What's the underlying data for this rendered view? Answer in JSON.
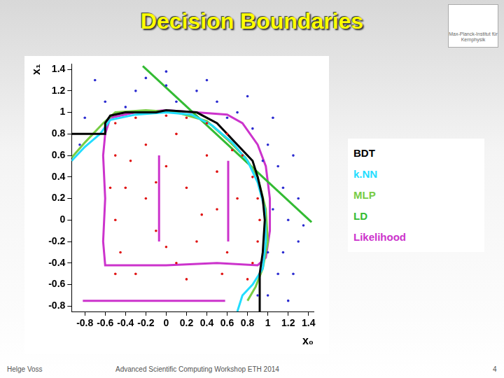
{
  "slide": {
    "title": "Decision Boundaries",
    "logo": "Max-Planck-Institut für Kernphysik",
    "footer_left": "Helge Voss",
    "footer_center": "Advanced Scientific Computing Workshop ETH 2014",
    "page": "4"
  },
  "chart_data": {
    "type": "scatter",
    "xlabel": "x₀",
    "ylabel": "x₁",
    "xlim": [
      -0.93,
      1.45
    ],
    "ylim": [
      -0.85,
      1.45
    ],
    "xticks": [
      -0.8,
      -0.6,
      -0.4,
      -0.2,
      0,
      0.2,
      0.4,
      0.6,
      0.8,
      1,
      1.2,
      1.4
    ],
    "yticks": [
      -0.8,
      -0.6,
      -0.4,
      -0.2,
      0,
      0.2,
      0.4,
      0.6,
      0.8,
      1,
      1.2,
      1.4
    ],
    "grid": false,
    "series": [
      {
        "color": "#2a2ad0",
        "type": "scatter",
        "marker": "dot",
        "x": [
          -0.8,
          -0.6,
          -0.3,
          0,
          0.3,
          0.5,
          0.7,
          0.85,
          1.0,
          1.1,
          1.15,
          1.2,
          1.15,
          1.1,
          1.0,
          -0.7,
          0,
          0.4,
          0.8,
          1.05,
          1.25,
          1.3,
          1.3,
          1.25,
          1.2,
          -0.4,
          0.1,
          0.6,
          0.95,
          1.05,
          1.0,
          -0.85,
          0.9,
          1.35,
          -0.2
        ],
        "y": [
          0.95,
          1.1,
          1.2,
          1.25,
          1.2,
          1.1,
          1.0,
          0.85,
          0.7,
          0.5,
          0.3,
          0,
          -0.3,
          -0.5,
          -0.7,
          1.3,
          1.38,
          1.3,
          1.15,
          0.95,
          0.6,
          0.2,
          -0.2,
          -0.5,
          -0.75,
          1.05,
          1.1,
          0.95,
          0.55,
          0.1,
          -0.3,
          0.7,
          -0.7,
          -0.05,
          1.32
        ]
      },
      {
        "color": "#e01010",
        "type": "scatter",
        "marker": "dot",
        "x": [
          -0.5,
          -0.3,
          0,
          0.2,
          0.4,
          0.6,
          0.75,
          0.85,
          0.9,
          0.92,
          0.9,
          0.85,
          0.8,
          -0.5,
          -0.4,
          -0.5,
          -0.45,
          -0.5,
          -0.2,
          0,
          0.2,
          0.4,
          0.5,
          0.3,
          0.1,
          -0.1,
          -0.2,
          0.6,
          0.7,
          0.5,
          -0.3,
          0.2,
          0.55,
          0.1,
          -0.1,
          0.35,
          -0.35,
          0.65,
          0,
          -0.55
        ],
        "y": [
          0.9,
          0.95,
          0.97,
          0.95,
          0.9,
          0.8,
          0.6,
          0.4,
          0.2,
          0,
          -0.2,
          -0.4,
          -0.55,
          0.6,
          0.3,
          0,
          -0.3,
          -0.5,
          0.7,
          0.5,
          0.3,
          0.6,
          0.1,
          -0.2,
          -0.4,
          -0.1,
          0.2,
          -0.3,
          0.2,
          0.45,
          -0.5,
          -0.55,
          -0.5,
          0.8,
          0.35,
          0.05,
          0.55,
          0.65,
          -0.25,
          0.3
        ]
      },
      {
        "name": "BDT",
        "color": "#000000",
        "type": "line",
        "x": [
          -0.93,
          -0.6,
          -0.6,
          -0.55,
          -0.4,
          -0.1,
          0,
          0.3,
          0.5,
          0.7,
          0.85,
          0.9,
          0.95,
          0.97,
          0.95,
          0.92,
          0.92
        ],
        "y": [
          0.8,
          0.8,
          0.9,
          0.97,
          1.0,
          1.0,
          1.02,
          1.0,
          0.9,
          0.7,
          0.55,
          0.4,
          0.2,
          0,
          -0.3,
          -0.5,
          -0.85
        ]
      },
      {
        "name": "k.NN",
        "color": "#22ddff",
        "type": "line",
        "x": [
          -0.93,
          -0.8,
          -0.65,
          -0.55,
          -0.3,
          0,
          0.25,
          0.45,
          0.65,
          0.8,
          0.9,
          0.97,
          0.98,
          0.95,
          0.85,
          0.75,
          0.7
        ],
        "y": [
          0.55,
          0.68,
          0.8,
          0.93,
          0.98,
          1.0,
          0.98,
          0.88,
          0.72,
          0.55,
          0.35,
          0.1,
          -0.2,
          -0.45,
          -0.6,
          -0.7,
          -0.85
        ]
      },
      {
        "name": "MLP",
        "color": "#77cc44",
        "type": "line",
        "x": [
          -0.93,
          -0.8,
          -0.62,
          -0.5,
          -0.2,
          0.1,
          0.4,
          0.6,
          0.78,
          0.9,
          0.98,
          1.0,
          0.95,
          0.88,
          0.8
        ],
        "y": [
          0.58,
          0.72,
          0.9,
          1.0,
          1.02,
          1.0,
          0.92,
          0.75,
          0.58,
          0.4,
          0.1,
          -0.2,
          -0.45,
          -0.62,
          -0.75
        ]
      },
      {
        "name": "LD",
        "color": "#33bb33",
        "type": "line",
        "x": [
          -0.23,
          1.43
        ],
        "y": [
          1.43,
          -0.02
        ]
      },
      {
        "name": "Likelihood",
        "color": "#cc33cc",
        "type": "line",
        "x": [
          -0.6,
          -0.55,
          -0.3,
          0,
          0.3,
          0.6,
          0.75,
          0.9,
          0.98,
          1.02,
          1.02,
          0.98,
          0.9,
          0.5,
          0,
          -0.6,
          -0.62,
          -0.6,
          -0.62,
          -0.6,
          null,
          -0.82,
          0.58,
          null,
          -0.07,
          -0.07,
          null,
          0.61,
          0.61
        ],
        "y": [
          0.8,
          0.95,
          1.0,
          1.02,
          1.0,
          0.98,
          0.9,
          0.7,
          0.5,
          0.2,
          -0.1,
          -0.35,
          -0.42,
          -0.4,
          -0.42,
          -0.42,
          -0.2,
          0.2,
          0.6,
          0.8,
          null,
          -0.75,
          -0.75,
          null,
          0.6,
          -0.2,
          null,
          0.55,
          -0.2
        ]
      }
    ]
  }
}
